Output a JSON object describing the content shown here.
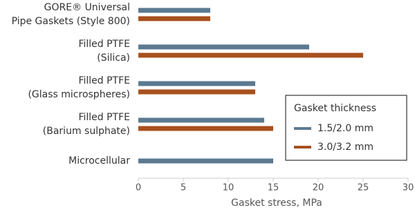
{
  "chart_data": {
    "type": "bar",
    "orientation": "horizontal",
    "categories": [
      [
        "GORE® Universal",
        "Pipe Gaskets (Style 800)"
      ],
      [
        "Filled PTFE",
        "(Silica)"
      ],
      [
        "Filled PTFE",
        "(Glass microspheres)"
      ],
      [
        "Filled PTFE",
        "(Barium sulphate)"
      ],
      [
        "Microcellular"
      ]
    ],
    "series": [
      {
        "name": "1.5/2.0 mm",
        "color": "#5b7a91",
        "values": [
          8,
          19,
          13,
          14,
          15
        ]
      },
      {
        "name": "3.0/3.2 mm",
        "color": "#a8501e",
        "values": [
          8,
          25,
          13,
          15,
          null
        ]
      }
    ],
    "xlim": [
      0,
      30
    ],
    "xticks": [
      0,
      5,
      10,
      15,
      20,
      25,
      30
    ],
    "xlabel": "Gasket stress, MPa",
    "legend_title": "Gasket thickness",
    "legend": "lower right"
  }
}
